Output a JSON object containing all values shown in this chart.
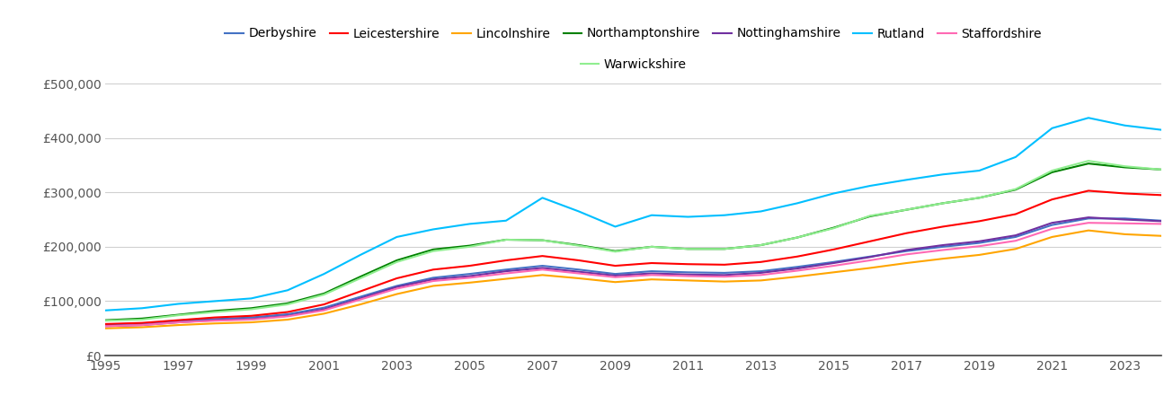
{
  "series": {
    "Derbyshire": {
      "color": "#4472C4",
      "data": {
        "1995": 57000,
        "1996": 59000,
        "1997": 63000,
        "1998": 67000,
        "1999": 70000,
        "2000": 76000,
        "2001": 88000,
        "2002": 108000,
        "2003": 128000,
        "2004": 143000,
        "2005": 150000,
        "2006": 158000,
        "2007": 165000,
        "2008": 158000,
        "2009": 150000,
        "2010": 155000,
        "2011": 153000,
        "2012": 152000,
        "2013": 155000,
        "2014": 163000,
        "2015": 172000,
        "2016": 182000,
        "2017": 192000,
        "2018": 200000,
        "2019": 207000,
        "2020": 218000,
        "2021": 240000,
        "2022": 252000,
        "2023": 252000,
        "2024": 248000
      }
    },
    "Leicestershire": {
      "color": "#FF0000",
      "data": {
        "1995": 58000,
        "1996": 60000,
        "1997": 65000,
        "1998": 70000,
        "1999": 73000,
        "2000": 80000,
        "2001": 94000,
        "2002": 118000,
        "2003": 142000,
        "2004": 158000,
        "2005": 165000,
        "2006": 175000,
        "2007": 183000,
        "2008": 175000,
        "2009": 165000,
        "2010": 170000,
        "2011": 168000,
        "2012": 167000,
        "2013": 172000,
        "2014": 182000,
        "2015": 195000,
        "2016": 210000,
        "2017": 225000,
        "2018": 237000,
        "2019": 247000,
        "2020": 260000,
        "2021": 287000,
        "2022": 303000,
        "2023": 298000,
        "2024": 295000
      }
    },
    "Lincolnshire": {
      "color": "#FFA500",
      "data": {
        "1995": 50000,
        "1996": 52000,
        "1997": 56000,
        "1998": 59000,
        "1999": 61000,
        "2000": 66000,
        "2001": 77000,
        "2002": 94000,
        "2003": 113000,
        "2004": 128000,
        "2005": 134000,
        "2006": 141000,
        "2007": 148000,
        "2008": 142000,
        "2009": 135000,
        "2010": 140000,
        "2011": 138000,
        "2012": 136000,
        "2013": 138000,
        "2014": 145000,
        "2015": 153000,
        "2016": 161000,
        "2017": 170000,
        "2018": 178000,
        "2019": 185000,
        "2020": 196000,
        "2021": 218000,
        "2022": 230000,
        "2023": 223000,
        "2024": 220000
      }
    },
    "Northamptonshire": {
      "color": "#008000",
      "data": {
        "1995": 65000,
        "1996": 68000,
        "1997": 75000,
        "1998": 82000,
        "1999": 87000,
        "2000": 96000,
        "2001": 114000,
        "2002": 145000,
        "2003": 175000,
        "2004": 195000,
        "2005": 202000,
        "2006": 213000,
        "2007": 212000,
        "2008": 203000,
        "2009": 192000,
        "2010": 200000,
        "2011": 196000,
        "2012": 196000,
        "2013": 203000,
        "2014": 217000,
        "2015": 235000,
        "2016": 256000,
        "2017": 268000,
        "2018": 280000,
        "2019": 290000,
        "2020": 305000,
        "2021": 337000,
        "2022": 353000,
        "2023": 346000,
        "2024": 342000
      }
    },
    "Nottinghamshire": {
      "color": "#7030A0",
      "data": {
        "1995": 54000,
        "1996": 56000,
        "1997": 61000,
        "1998": 65000,
        "1999": 67000,
        "2000": 73000,
        "2001": 85000,
        "2002": 105000,
        "2003": 126000,
        "2004": 140000,
        "2005": 146000,
        "2006": 155000,
        "2007": 161000,
        "2008": 154000,
        "2009": 147000,
        "2010": 151000,
        "2011": 149000,
        "2012": 148000,
        "2013": 152000,
        "2014": 160000,
        "2015": 170000,
        "2016": 181000,
        "2017": 194000,
        "2018": 203000,
        "2019": 210000,
        "2020": 221000,
        "2021": 244000,
        "2022": 254000,
        "2023": 250000,
        "2024": 247000
      }
    },
    "Rutland": {
      "color": "#00BFFF",
      "data": {
        "1995": 83000,
        "1996": 87000,
        "1997": 95000,
        "1998": 100000,
        "1999": 105000,
        "2000": 120000,
        "2001": 150000,
        "2002": 185000,
        "2003": 218000,
        "2004": 232000,
        "2005": 242000,
        "2006": 248000,
        "2007": 290000,
        "2008": 265000,
        "2009": 237000,
        "2010": 258000,
        "2011": 255000,
        "2012": 258000,
        "2013": 265000,
        "2014": 280000,
        "2015": 298000,
        "2016": 312000,
        "2017": 323000,
        "2018": 333000,
        "2019": 340000,
        "2020": 365000,
        "2021": 418000,
        "2022": 437000,
        "2023": 423000,
        "2024": 415000
      }
    },
    "Staffordshire": {
      "color": "#FF69B4",
      "data": {
        "1995": 54000,
        "1996": 56000,
        "1997": 61000,
        "1998": 64000,
        "1999": 66000,
        "2000": 72000,
        "2001": 83000,
        "2002": 103000,
        "2003": 123000,
        "2004": 137000,
        "2005": 143000,
        "2006": 151000,
        "2007": 158000,
        "2008": 151000,
        "2009": 144000,
        "2010": 148000,
        "2011": 146000,
        "2012": 145000,
        "2013": 148000,
        "2014": 156000,
        "2015": 165000,
        "2016": 175000,
        "2017": 186000,
        "2018": 194000,
        "2019": 201000,
        "2020": 211000,
        "2021": 233000,
        "2022": 244000,
        "2023": 243000,
        "2024": 242000
      }
    },
    "Warwickshire": {
      "color": "#90EE90",
      "data": {
        "1995": 64000,
        "1996": 66000,
        "1997": 74000,
        "1998": 80000,
        "1999": 85000,
        "2000": 94000,
        "2001": 112000,
        "2002": 142000,
        "2003": 172000,
        "2004": 192000,
        "2005": 200000,
        "2006": 213000,
        "2007": 212000,
        "2008": 202000,
        "2009": 191000,
        "2010": 200000,
        "2011": 196000,
        "2012": 196000,
        "2013": 203000,
        "2014": 217000,
        "2015": 234000,
        "2016": 257000,
        "2017": 268000,
        "2018": 280000,
        "2019": 290000,
        "2020": 306000,
        "2021": 340000,
        "2022": 358000,
        "2023": 348000,
        "2024": 342000
      }
    }
  },
  "ylim": [
    0,
    520000
  ],
  "yticks": [
    0,
    100000,
    200000,
    300000,
    400000,
    500000
  ],
  "ytick_labels": [
    "£0",
    "£100,000",
    "£200,000",
    "£300,000",
    "£400,000",
    "£500,000"
  ],
  "background_color": "#ffffff",
  "grid_color": "#d0d0d0",
  "legend_order": [
    "Derbyshire",
    "Leicestershire",
    "Lincolnshire",
    "Northamptonshire",
    "Nottinghamshire",
    "Rutland",
    "Staffordshire",
    "Warwickshire"
  ]
}
